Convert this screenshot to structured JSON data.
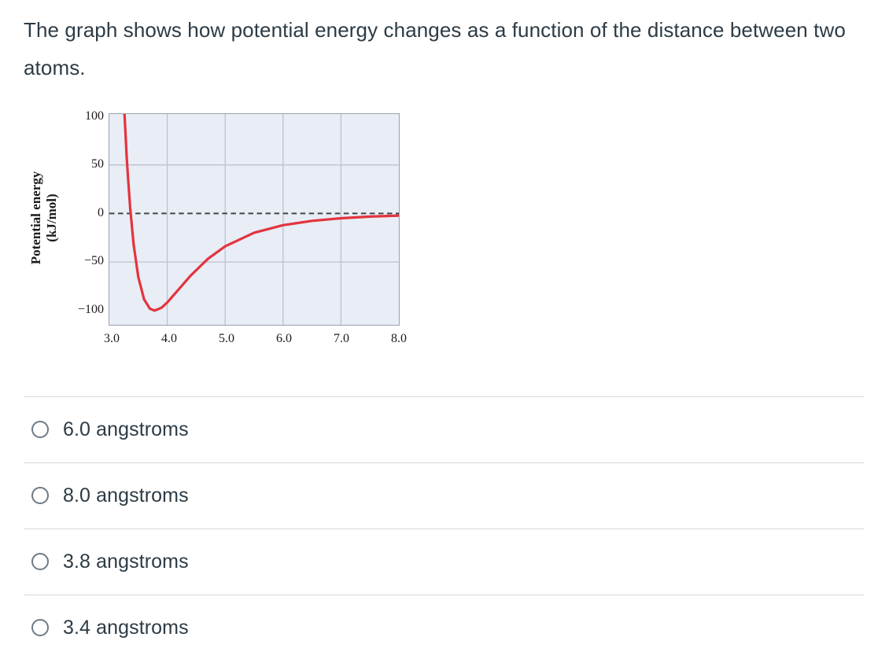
{
  "question": {
    "text": "The graph shows how potential energy changes as a function of the distance between two atoms."
  },
  "chart_data": {
    "type": "line",
    "title": "",
    "xlabel": "",
    "ylabel": "Potential energy (kJ/mol)",
    "ylabel_line1": "Potential energy",
    "ylabel_line2": "(kJ/mol)",
    "xlim": [
      3.0,
      8.0
    ],
    "ylim": [
      -114.7,
      102.4
    ],
    "grid": true,
    "x_grid_values": [
      4.0,
      5.0,
      6.0,
      7.0
    ],
    "y_grid_values": [
      50,
      -50
    ],
    "zero_line": {
      "y": 0,
      "style": "dashed"
    },
    "x_tick_labels": [
      "3.0",
      "4.0",
      "5.0",
      "6.0",
      "7.0",
      "8.0"
    ],
    "y_tick_labels": [
      "100",
      "50",
      "0",
      "−50",
      "−100"
    ],
    "y_tick_values": [
      100,
      50,
      0,
      -50,
      -100
    ],
    "series": [
      {
        "name": "potential energy vs distance",
        "x": [
          3.262,
          3.28,
          3.3,
          3.32,
          3.36,
          3.42,
          3.5,
          3.6,
          3.7,
          3.78,
          3.9,
          4.0,
          4.2,
          4.4,
          4.7,
          5.0,
          5.5,
          6.0,
          6.5,
          7.0,
          7.5,
          8.0
        ],
        "y": [
          102.4,
          80.4,
          57.7,
          39.0,
          5.6,
          -32.2,
          -65.5,
          -88.4,
          -98.1,
          -100.0,
          -97.1,
          -91.7,
          -78.0,
          -64.2,
          -46.8,
          -33.9,
          -19.9,
          -12.1,
          -7.6,
          -4.9,
          -3.2,
          -2.2
        ]
      }
    ],
    "minimum_point": {
      "x": 3.8,
      "y": -100
    },
    "zero_crossing_x": 3.37,
    "colors": {
      "curve": "#e3343e",
      "plot_bg": "#e8edf6",
      "grid": "#bcc3cd",
      "border": "#9aa2ac",
      "zero_line": "#444444"
    }
  },
  "options": [
    {
      "label": "6.0 angstroms"
    },
    {
      "label": "8.0 angstroms"
    },
    {
      "label": "3.8 angstroms"
    },
    {
      "label": "3.4 angstroms"
    }
  ]
}
